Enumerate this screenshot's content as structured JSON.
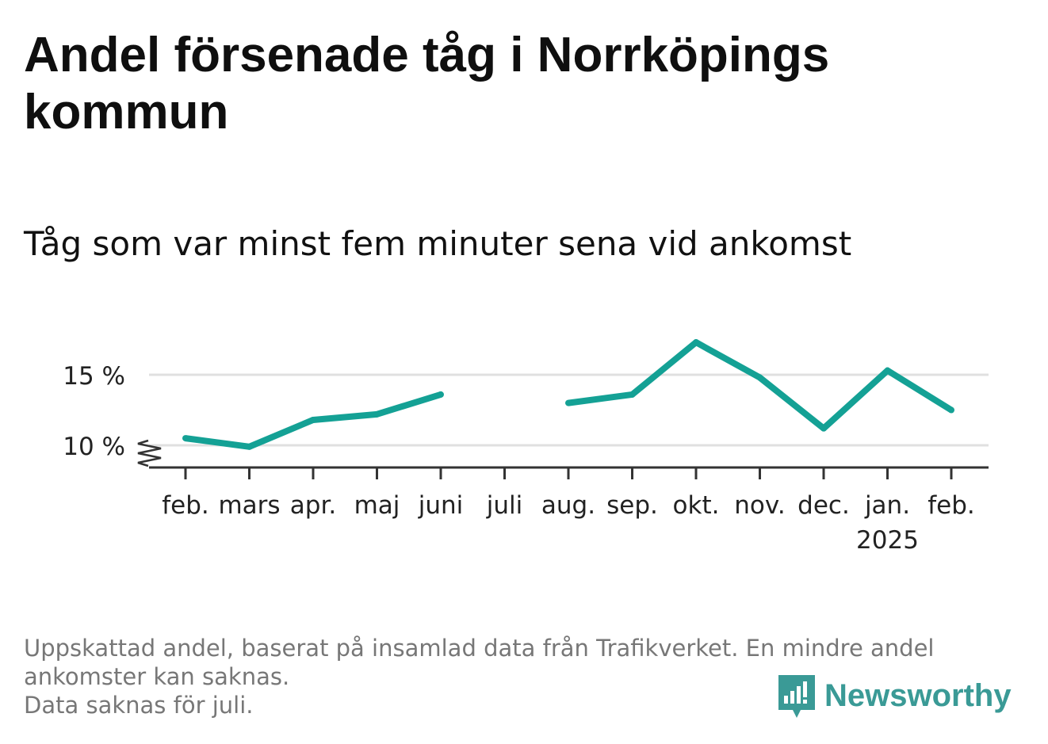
{
  "title": "Andel försenade tåg i Norrköpings kommun",
  "subtitle": "Tåg som var minst fem minuter sena vid ankomst",
  "footnote": {
    "line1": "Uppskattad andel, baserat på insamlad data från Trafikverket. En mindre andel",
    "line2": "ankomster kan saknas.",
    "line3": "Data saknas för juli."
  },
  "logo": {
    "text": "Newsworthy",
    "icon": "newsworthy-logo-icon",
    "color": "#3a9a96"
  },
  "colors": {
    "line": "#14a195",
    "grid": "#e0e0e0",
    "axis": "#333333"
  },
  "chart_data": {
    "type": "line",
    "categories": [
      "feb.",
      "mars",
      "apr.",
      "maj",
      "juni",
      "juli",
      "aug.",
      "sep.",
      "okt.",
      "nov.",
      "dec.",
      "jan.",
      "feb."
    ],
    "year_labels": [
      "",
      "",
      "",
      "",
      "",
      "",
      "",
      "",
      "",
      "",
      "",
      "2025",
      ""
    ],
    "series": [
      {
        "values": [
          10.5,
          9.9,
          11.8,
          12.2,
          13.6,
          null,
          13.0,
          13.6,
          17.3,
          14.8,
          11.2,
          15.3,
          12.5
        ]
      }
    ],
    "yticks": [
      10,
      15
    ],
    "ytick_labels": [
      "10 %",
      "15 %"
    ],
    "ylim": [
      8.5,
      18
    ],
    "axis_break": true,
    "grid": true,
    "xlabel": "",
    "ylabel": ""
  }
}
